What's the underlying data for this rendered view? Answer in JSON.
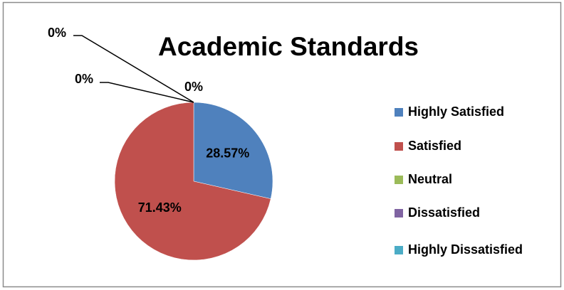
{
  "chart_data": {
    "type": "pie",
    "title": "Academic Standards",
    "categories": [
      "Highly Satisfied",
      "Satisfied",
      "Neutral",
      "Dissatisfied",
      "Highly Dissatisfied"
    ],
    "values": [
      28.57,
      71.43,
      0,
      0,
      0
    ],
    "value_labels": [
      "28.57%",
      "71.43%",
      "0%",
      "0%",
      "0%"
    ],
    "colors": [
      "#4f81bd",
      "#c0504d",
      "#9bbb59",
      "#8064a2",
      "#4bacc6"
    ],
    "legend": "right"
  }
}
